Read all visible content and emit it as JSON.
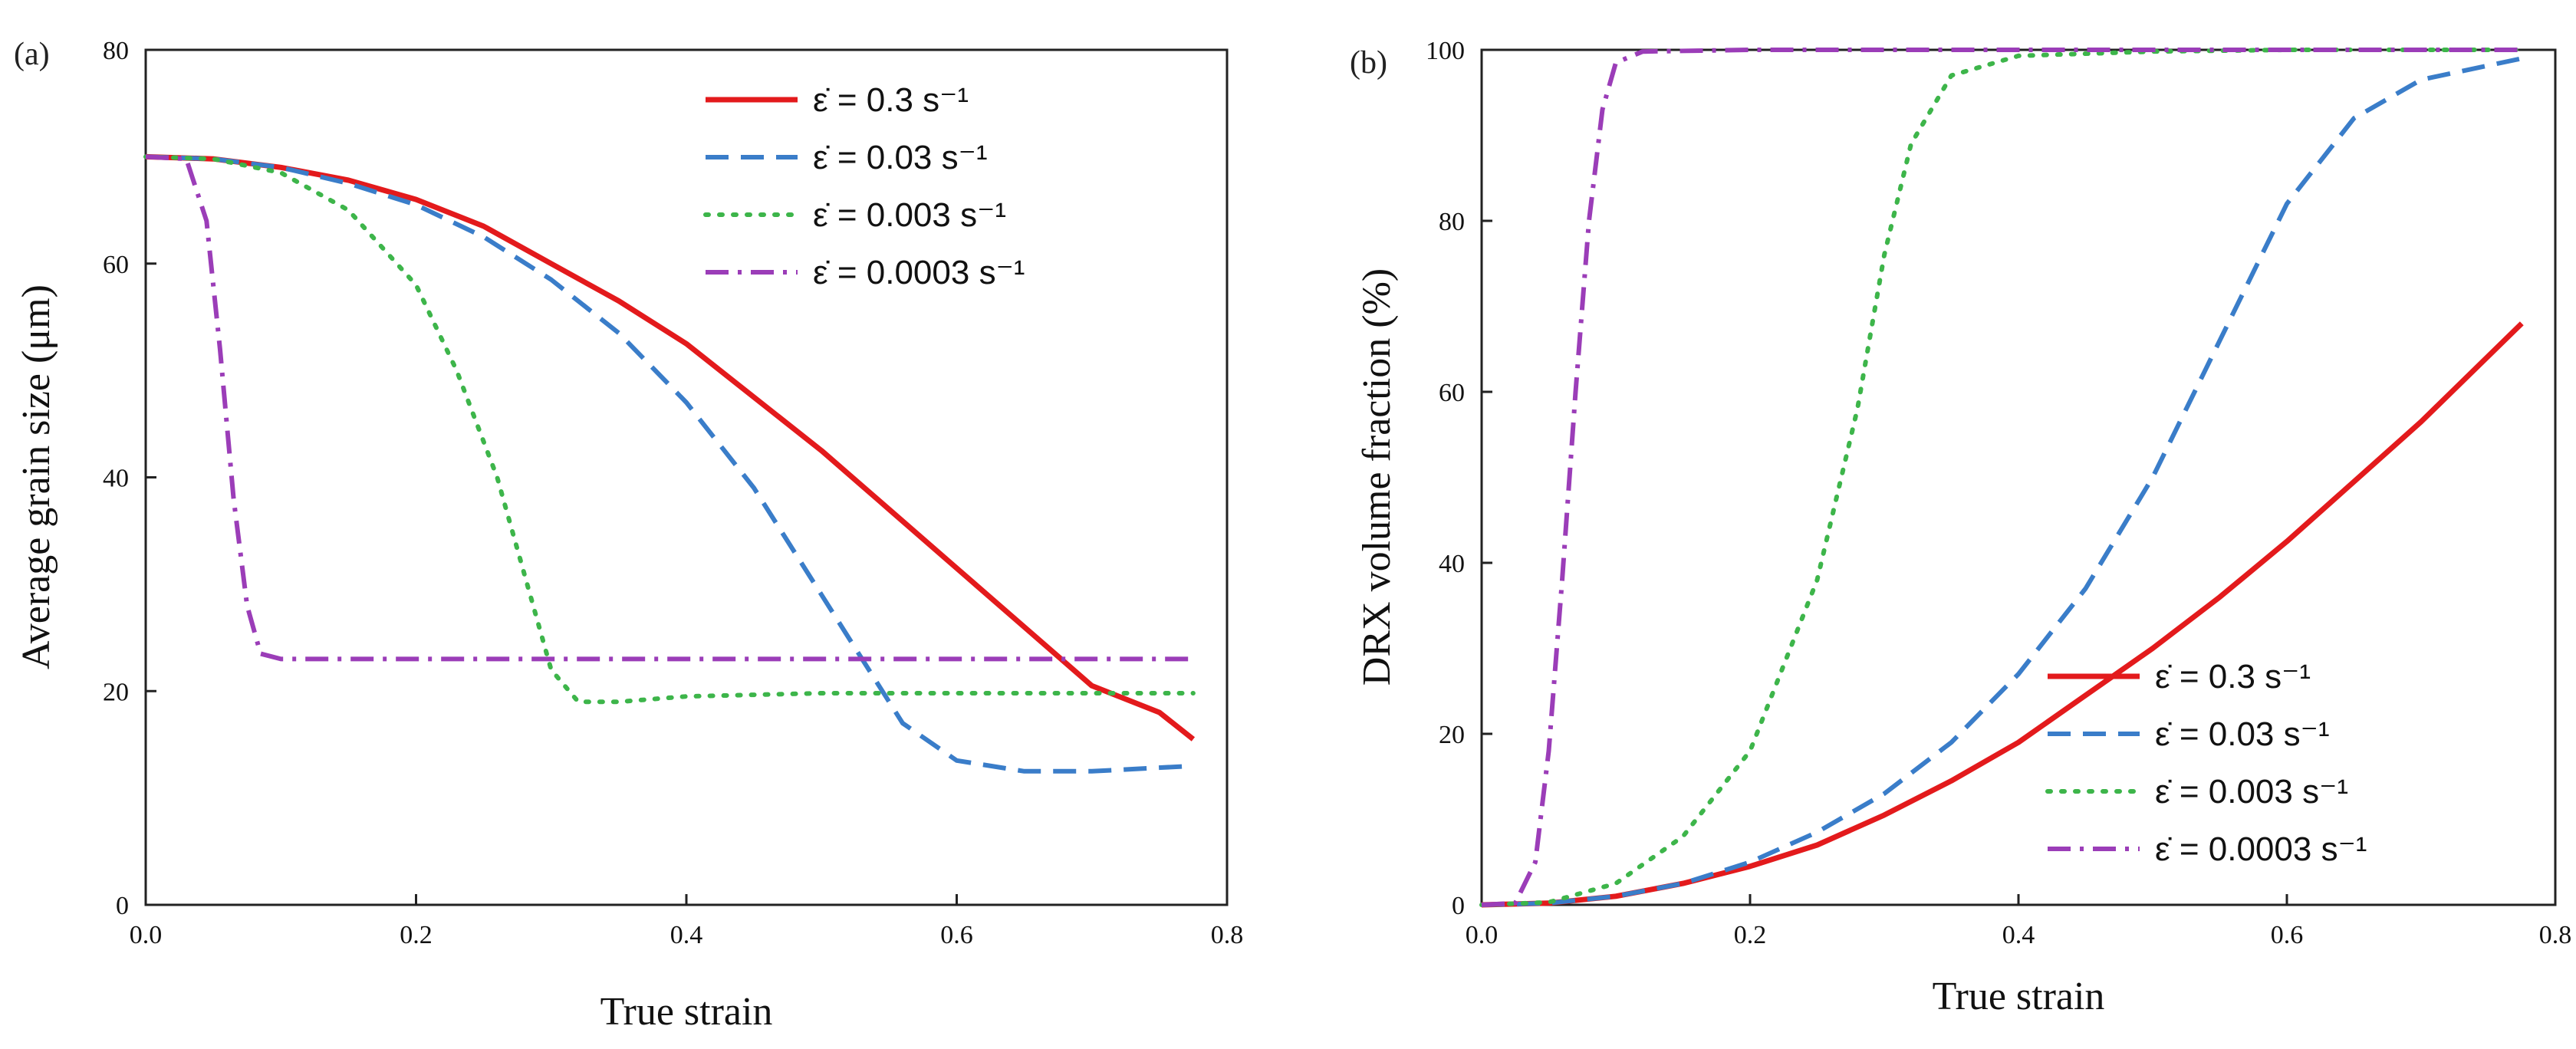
{
  "chart_data": [
    {
      "panel_label": "(a)",
      "type": "line",
      "xlabel": "True strain",
      "ylabel": "Average grain size (μm)",
      "xlim": [
        0,
        0.8
      ],
      "ylim": [
        0,
        80
      ],
      "xticks": [
        0.0,
        0.2,
        0.4,
        0.6,
        0.8
      ],
      "yticks": [
        0,
        20,
        40,
        60,
        80
      ],
      "xtick_labels": [
        "0.0",
        "0.2",
        "0.4",
        "0.6",
        "0.8"
      ],
      "ytick_labels": [
        "0",
        "20",
        "40",
        "60",
        "80"
      ],
      "legend_position": "top-right",
      "series": [
        {
          "name": "ε̇ = 0.3 s⁻¹",
          "color": "#e31a1c",
          "style": "solid",
          "x": [
            0,
            0.05,
            0.1,
            0.15,
            0.2,
            0.25,
            0.3,
            0.35,
            0.4,
            0.45,
            0.5,
            0.55,
            0.6,
            0.65,
            0.7,
            0.75,
            0.775
          ],
          "y": [
            70,
            69.8,
            69,
            67.8,
            66,
            63.5,
            60,
            56.5,
            52.5,
            47.5,
            42.5,
            37,
            31.5,
            26,
            20.5,
            18,
            15.5
          ]
        },
        {
          "name": "ε̇ = 0.03 s⁻¹",
          "color": "#3a7dc9",
          "style": "dashed",
          "x": [
            0,
            0.05,
            0.1,
            0.15,
            0.2,
            0.25,
            0.3,
            0.35,
            0.4,
            0.45,
            0.5,
            0.53,
            0.56,
            0.6,
            0.65,
            0.7,
            0.775
          ],
          "y": [
            70,
            69.8,
            69,
            67.5,
            65.5,
            62.5,
            58.5,
            53.5,
            47,
            39,
            29,
            23,
            17,
            13.5,
            12.5,
            12.5,
            13
          ]
        },
        {
          "name": "ε̇ = 0.003 s⁻¹",
          "color": "#3db54a",
          "style": "dotted",
          "x": [
            0,
            0.05,
            0.1,
            0.15,
            0.2,
            0.23,
            0.26,
            0.28,
            0.3,
            0.32,
            0.35,
            0.4,
            0.5,
            0.6,
            0.7,
            0.775
          ],
          "y": [
            70,
            69.8,
            68.5,
            65,
            58,
            50,
            40,
            31,
            22,
            19,
            19,
            19.5,
            19.8,
            19.8,
            19.8,
            19.8
          ]
        },
        {
          "name": "ε̇ = 0.0003 s⁻¹",
          "color": "#9b3db8",
          "style": "dashdot",
          "x": [
            0,
            0.03,
            0.045,
            0.055,
            0.065,
            0.075,
            0.085,
            0.1,
            0.2,
            0.4,
            0.6,
            0.775
          ],
          "y": [
            70,
            69.8,
            64,
            52,
            38,
            28,
            23.5,
            23,
            23,
            23,
            23,
            23
          ]
        }
      ]
    },
    {
      "panel_label": "(b)",
      "type": "line",
      "xlabel": "True strain",
      "ylabel": "DRX volume fraction (%)",
      "xlim": [
        0,
        0.8
      ],
      "ylim": [
        0,
        100
      ],
      "xticks": [
        0.0,
        0.2,
        0.4,
        0.6,
        0.8
      ],
      "yticks": [
        0,
        20,
        40,
        60,
        80,
        100
      ],
      "xtick_labels": [
        "0.0",
        "0.2",
        "0.4",
        "0.6",
        "0.8"
      ],
      "ytick_labels": [
        "0",
        "20",
        "40",
        "60",
        "80",
        "100"
      ],
      "legend_position": "bottom-right",
      "series": [
        {
          "name": "ε̇ = 0.3 s⁻¹",
          "color": "#e31a1c",
          "style": "solid",
          "x": [
            0,
            0.05,
            0.1,
            0.15,
            0.2,
            0.25,
            0.3,
            0.35,
            0.4,
            0.45,
            0.5,
            0.55,
            0.6,
            0.65,
            0.7,
            0.775
          ],
          "y": [
            0,
            0.2,
            1,
            2.5,
            4.5,
            7,
            10.5,
            14.5,
            19,
            24.5,
            30,
            36,
            42.5,
            49.5,
            56.5,
            68
          ]
        },
        {
          "name": "ε̇ = 0.03 s⁻¹",
          "color": "#3a7dc9",
          "style": "dashed",
          "x": [
            0,
            0.05,
            0.1,
            0.15,
            0.2,
            0.25,
            0.3,
            0.35,
            0.4,
            0.45,
            0.5,
            0.55,
            0.6,
            0.65,
            0.7,
            0.775
          ],
          "y": [
            0,
            0.2,
            1,
            2.5,
            5,
            8.5,
            13,
            19,
            27,
            37,
            50,
            66,
            82,
            92,
            96.5,
            99
          ]
        },
        {
          "name": "ε̇ = 0.003 s⁻¹",
          "color": "#3db54a",
          "style": "dotted",
          "x": [
            0,
            0.05,
            0.1,
            0.15,
            0.2,
            0.25,
            0.28,
            0.3,
            0.32,
            0.35,
            0.4,
            0.5,
            0.6,
            0.7,
            0.775
          ],
          "y": [
            0,
            0.3,
            2.5,
            8,
            18,
            38,
            58,
            76,
            89,
            97,
            99.3,
            99.8,
            100,
            100,
            100
          ]
        },
        {
          "name": "ε̇ = 0.0003 s⁻¹",
          "color": "#9b3db8",
          "style": "dashdot",
          "x": [
            0,
            0.025,
            0.04,
            0.05,
            0.06,
            0.07,
            0.08,
            0.09,
            0.1,
            0.12,
            0.2,
            0.4,
            0.6,
            0.775
          ],
          "y": [
            0,
            0.2,
            5,
            18,
            38,
            60,
            80,
            93,
            98.5,
            99.8,
            100,
            100,
            100,
            100
          ]
        }
      ]
    }
  ]
}
